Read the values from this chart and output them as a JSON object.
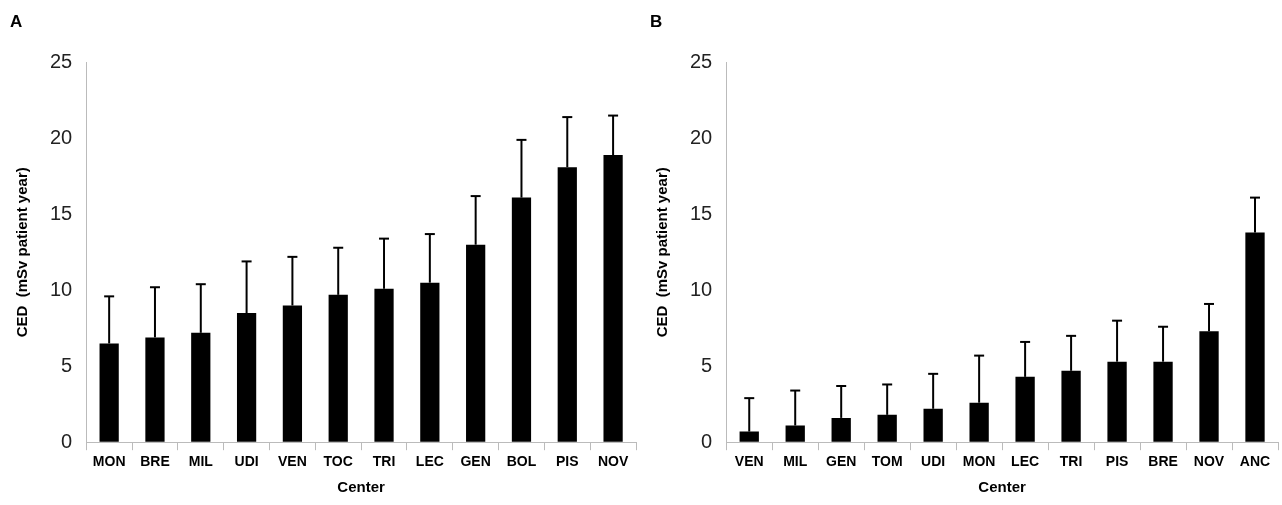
{
  "chart_data": [
    {
      "type": "bar",
      "title": "A",
      "xlabel": "Center",
      "ylabel": "CED  (mSv patient year)",
      "categories": [
        "MON",
        "BRE",
        "MIL",
        "UDI",
        "VEN",
        "TOC",
        "TRI",
        "LEC",
        "GEN",
        "BOL",
        "PIS",
        "NOV"
      ],
      "color": "#000000",
      "values": [
        6.5,
        6.9,
        7.2,
        8.5,
        9.0,
        9.7,
        10.1,
        10.5,
        13.0,
        16.1,
        18.1,
        18.9
      ],
      "errors": [
        [
          6.5,
          9.6
        ],
        [
          6.9,
          10.2
        ],
        [
          7.2,
          10.4
        ],
        [
          8.5,
          11.9
        ],
        [
          9.0,
          12.2
        ],
        [
          9.7,
          12.8
        ],
        [
          10.1,
          13.4
        ],
        [
          10.5,
          13.7
        ],
        [
          13.0,
          16.2
        ],
        [
          16.1,
          19.9
        ],
        [
          18.1,
          21.4
        ],
        [
          18.9,
          21.5
        ]
      ],
      "ylim": [
        0,
        25
      ],
      "yticks": [
        0,
        5,
        10,
        15,
        20,
        25
      ],
      "legend": false
    },
    {
      "type": "bar",
      "title": "B",
      "xlabel": "Center",
      "ylabel": "CED  (mSv patient year)",
      "categories": [
        "VEN",
        "MIL",
        "GEN",
        "TOM",
        "UDI",
        "MON",
        "LEC",
        "TRI",
        "PIS",
        "BRE",
        "NOV",
        "ANC"
      ],
      "color": "#000000",
      "values": [
        0.7,
        1.1,
        1.6,
        1.8,
        2.2,
        2.6,
        4.3,
        4.7,
        5.3,
        5.3,
        7.3,
        13.8
      ],
      "errors": [
        [
          0.7,
          2.9
        ],
        [
          1.1,
          3.4
        ],
        [
          1.6,
          3.7
        ],
        [
          1.8,
          3.8
        ],
        [
          2.2,
          4.5
        ],
        [
          2.6,
          5.7
        ],
        [
          4.3,
          6.6
        ],
        [
          4.7,
          7.0
        ],
        [
          5.3,
          8.0
        ],
        [
          5.3,
          7.6
        ],
        [
          7.3,
          9.1
        ],
        [
          13.8,
          16.1
        ]
      ],
      "ylim": [
        0,
        25
      ],
      "yticks": [
        0,
        5,
        10,
        15,
        20,
        25
      ],
      "legend": false
    }
  ]
}
